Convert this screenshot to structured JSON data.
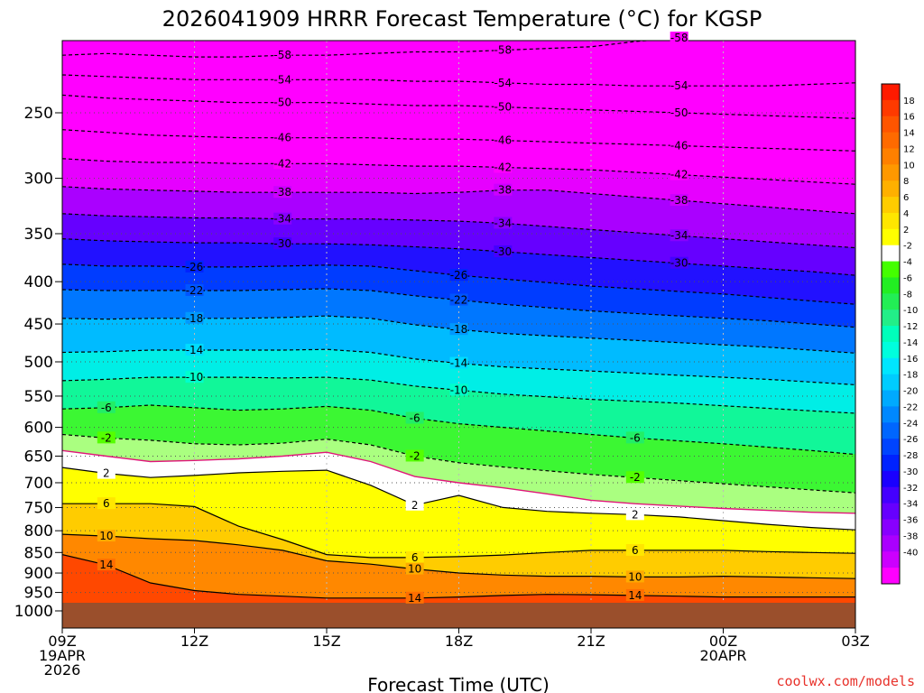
{
  "chart_data": {
    "type": "heatmap",
    "title": "2026041909 HRRR Forecast Temperature (°C) for KGSP",
    "xlabel": "Forecast Time (UTC)",
    "ylabel": "",
    "credit": "coolwx.com/models",
    "x_hours": [
      0,
      18
    ],
    "y_pressure_range": [
      1030,
      200
    ],
    "y_scale": "log-pressure",
    "grid": true,
    "x_ticks": [
      {
        "h": 0,
        "l1": "09Z",
        "l2": "19APR",
        "l3": "2026"
      },
      {
        "h": 3,
        "l1": "12Z"
      },
      {
        "h": 6,
        "l1": "15Z"
      },
      {
        "h": 9,
        "l1": "18Z"
      },
      {
        "h": 12,
        "l1": "21Z"
      },
      {
        "h": 15,
        "l1": "00Z",
        "l2": "20APR"
      },
      {
        "h": 18,
        "l1": "03Z"
      }
    ],
    "y_ticks": [
      "250",
      "300",
      "350",
      "400",
      "450",
      "500",
      "550",
      "600",
      "650",
      "700",
      "750",
      "800",
      "850",
      "900",
      "950",
      "1000"
    ],
    "colorbar": {
      "labels": [
        "18",
        "16",
        "14",
        "12",
        "10",
        "8",
        "6",
        "4",
        "2",
        "-2",
        "-4",
        "-6",
        "-8",
        "-10",
        "-12",
        "-14",
        "-16",
        "-18",
        "-20",
        "-22",
        "-24",
        "-26",
        "-28",
        "-30",
        "-32",
        "-34",
        "-36",
        "-38",
        "-40"
      ],
      "colors": [
        "#ff1a00",
        "#ff3a00",
        "#ff5500",
        "#ff6a00",
        "#ff8000",
        "#ff9800",
        "#ffb000",
        "#ffcc00",
        "#ffe600",
        "#ffff00",
        "#ffffff",
        "#44ff00",
        "#22ee22",
        "#22ee55",
        "#22ee88",
        "#00ffbb",
        "#00ffdd",
        "#00e6ff",
        "#00ccff",
        "#00aaff",
        "#0088ff",
        "#0066ff",
        "#0044ff",
        "#0022ff",
        "#1a00ff",
        "#4400ff",
        "#6600ff",
        "#8800ff",
        "#aa00ff",
        "#cc00ff",
        "#ff00ff"
      ]
    },
    "times": [
      0,
      1,
      2,
      3,
      4,
      5,
      6,
      7,
      8,
      9,
      10,
      11,
      12,
      13,
      14,
      15,
      16,
      17,
      18
    ],
    "isotherms": [
      {
        "t": -58,
        "p": [
          213,
          212,
          213,
          214,
          214,
          213,
          213,
          212,
          211,
          211,
          210,
          209,
          208,
          205,
          203,
          201,
          200,
          200,
          200
        ]
      },
      {
        "t": -54,
        "p": [
          225,
          226,
          227,
          228,
          228,
          228,
          228,
          228,
          229,
          229,
          230,
          231,
          231,
          232,
          232,
          232,
          232,
          231,
          230
        ]
      },
      {
        "t": -50,
        "p": [
          238,
          240,
          241,
          242,
          243,
          243,
          243,
          244,
          245,
          245,
          246,
          247,
          248,
          249,
          250,
          251,
          252,
          253,
          254
        ]
      },
      {
        "t": -46,
        "p": [
          262,
          264,
          266,
          267,
          268,
          268,
          268,
          268,
          269,
          269,
          270,
          271,
          272,
          273,
          274,
          275,
          276,
          277,
          278
        ]
      },
      {
        "t": -42,
        "p": [
          284,
          286,
          287,
          287,
          288,
          288,
          288,
          289,
          290,
          290,
          291,
          292,
          293,
          295,
          297,
          299,
          301,
          303,
          305
        ]
      },
      {
        "t": -38,
        "p": [
          307,
          309,
          310,
          311,
          312,
          312,
          312,
          312,
          313,
          312,
          310,
          310,
          313,
          316,
          319,
          322,
          325,
          328,
          331
        ]
      },
      {
        "t": -34,
        "p": [
          331,
          333,
          334,
          335,
          335,
          336,
          336,
          336,
          337,
          338,
          340,
          343,
          346,
          349,
          352,
          355,
          358,
          361,
          364
        ]
      },
      {
        "t": -30,
        "p": [
          355,
          357,
          358,
          359,
          359,
          360,
          360,
          361,
          363,
          365,
          368,
          371,
          374,
          377,
          380,
          383,
          386,
          389,
          393
        ]
      },
      {
        "t": -26,
        "p": [
          381,
          383,
          383,
          384,
          384,
          383,
          382,
          383,
          388,
          393,
          397,
          401,
          405,
          408,
          411,
          414,
          418,
          422,
          426
        ]
      },
      {
        "t": -22,
        "p": [
          409,
          410,
          410,
          410,
          410,
          409,
          408,
          410,
          416,
          421,
          426,
          430,
          434,
          437,
          440,
          443,
          446,
          450,
          454
        ]
      },
      {
        "t": -18,
        "p": [
          443,
          444,
          443,
          443,
          443,
          442,
          440,
          443,
          451,
          457,
          462,
          465,
          468,
          471,
          474,
          477,
          480,
          484,
          488
        ]
      },
      {
        "t": -14,
        "p": [
          487,
          486,
          484,
          484,
          484,
          484,
          483,
          487,
          496,
          502,
          507,
          510,
          513,
          516,
          519,
          522,
          525,
          529,
          533
        ]
      },
      {
        "t": -10,
        "p": [
          527,
          525,
          522,
          522,
          522,
          523,
          522,
          526,
          535,
          541,
          547,
          551,
          555,
          558,
          561,
          565,
          569,
          573,
          577
        ]
      },
      {
        "t": -6,
        "p": [
          570,
          568,
          564,
          568,
          572,
          570,
          566,
          572,
          585,
          594,
          600,
          606,
          612,
          618,
          623,
          628,
          634,
          640,
          647
        ]
      },
      {
        "t": -2,
        "p": [
          612,
          618,
          622,
          628,
          630,
          627,
          620,
          630,
          650,
          662,
          670,
          677,
          684,
          690,
          696,
          702,
          708,
          714,
          720
        ]
      },
      {
        "t": 0,
        "p": [
          640,
          650,
          660,
          658,
          655,
          650,
          643,
          660,
          688,
          700,
          710,
          722,
          735,
          742,
          747,
          752,
          756,
          760,
          762
        ]
      },
      {
        "t": 2,
        "p": [
          671,
          682,
          690,
          686,
          681,
          678,
          676,
          705,
          745,
          725,
          750,
          758,
          762,
          765,
          770,
          778,
          786,
          793,
          798
        ]
      },
      {
        "t": 6,
        "p": [
          742,
          742,
          742,
          748,
          790,
          820,
          855,
          862,
          862,
          860,
          856,
          850,
          845,
          845,
          845,
          845,
          848,
          850,
          852
        ]
      },
      {
        "t": 10,
        "p": [
          808,
          812,
          818,
          822,
          832,
          845,
          870,
          878,
          890,
          900,
          905,
          908,
          908,
          910,
          910,
          908,
          910,
          912,
          914
        ]
      },
      {
        "t": 14,
        "p": [
          855,
          880,
          925,
          945,
          955,
          960,
          965,
          965,
          965,
          962,
          958,
          955,
          956,
          958,
          960,
          962,
          962,
          962,
          962
        ]
      }
    ]
  }
}
